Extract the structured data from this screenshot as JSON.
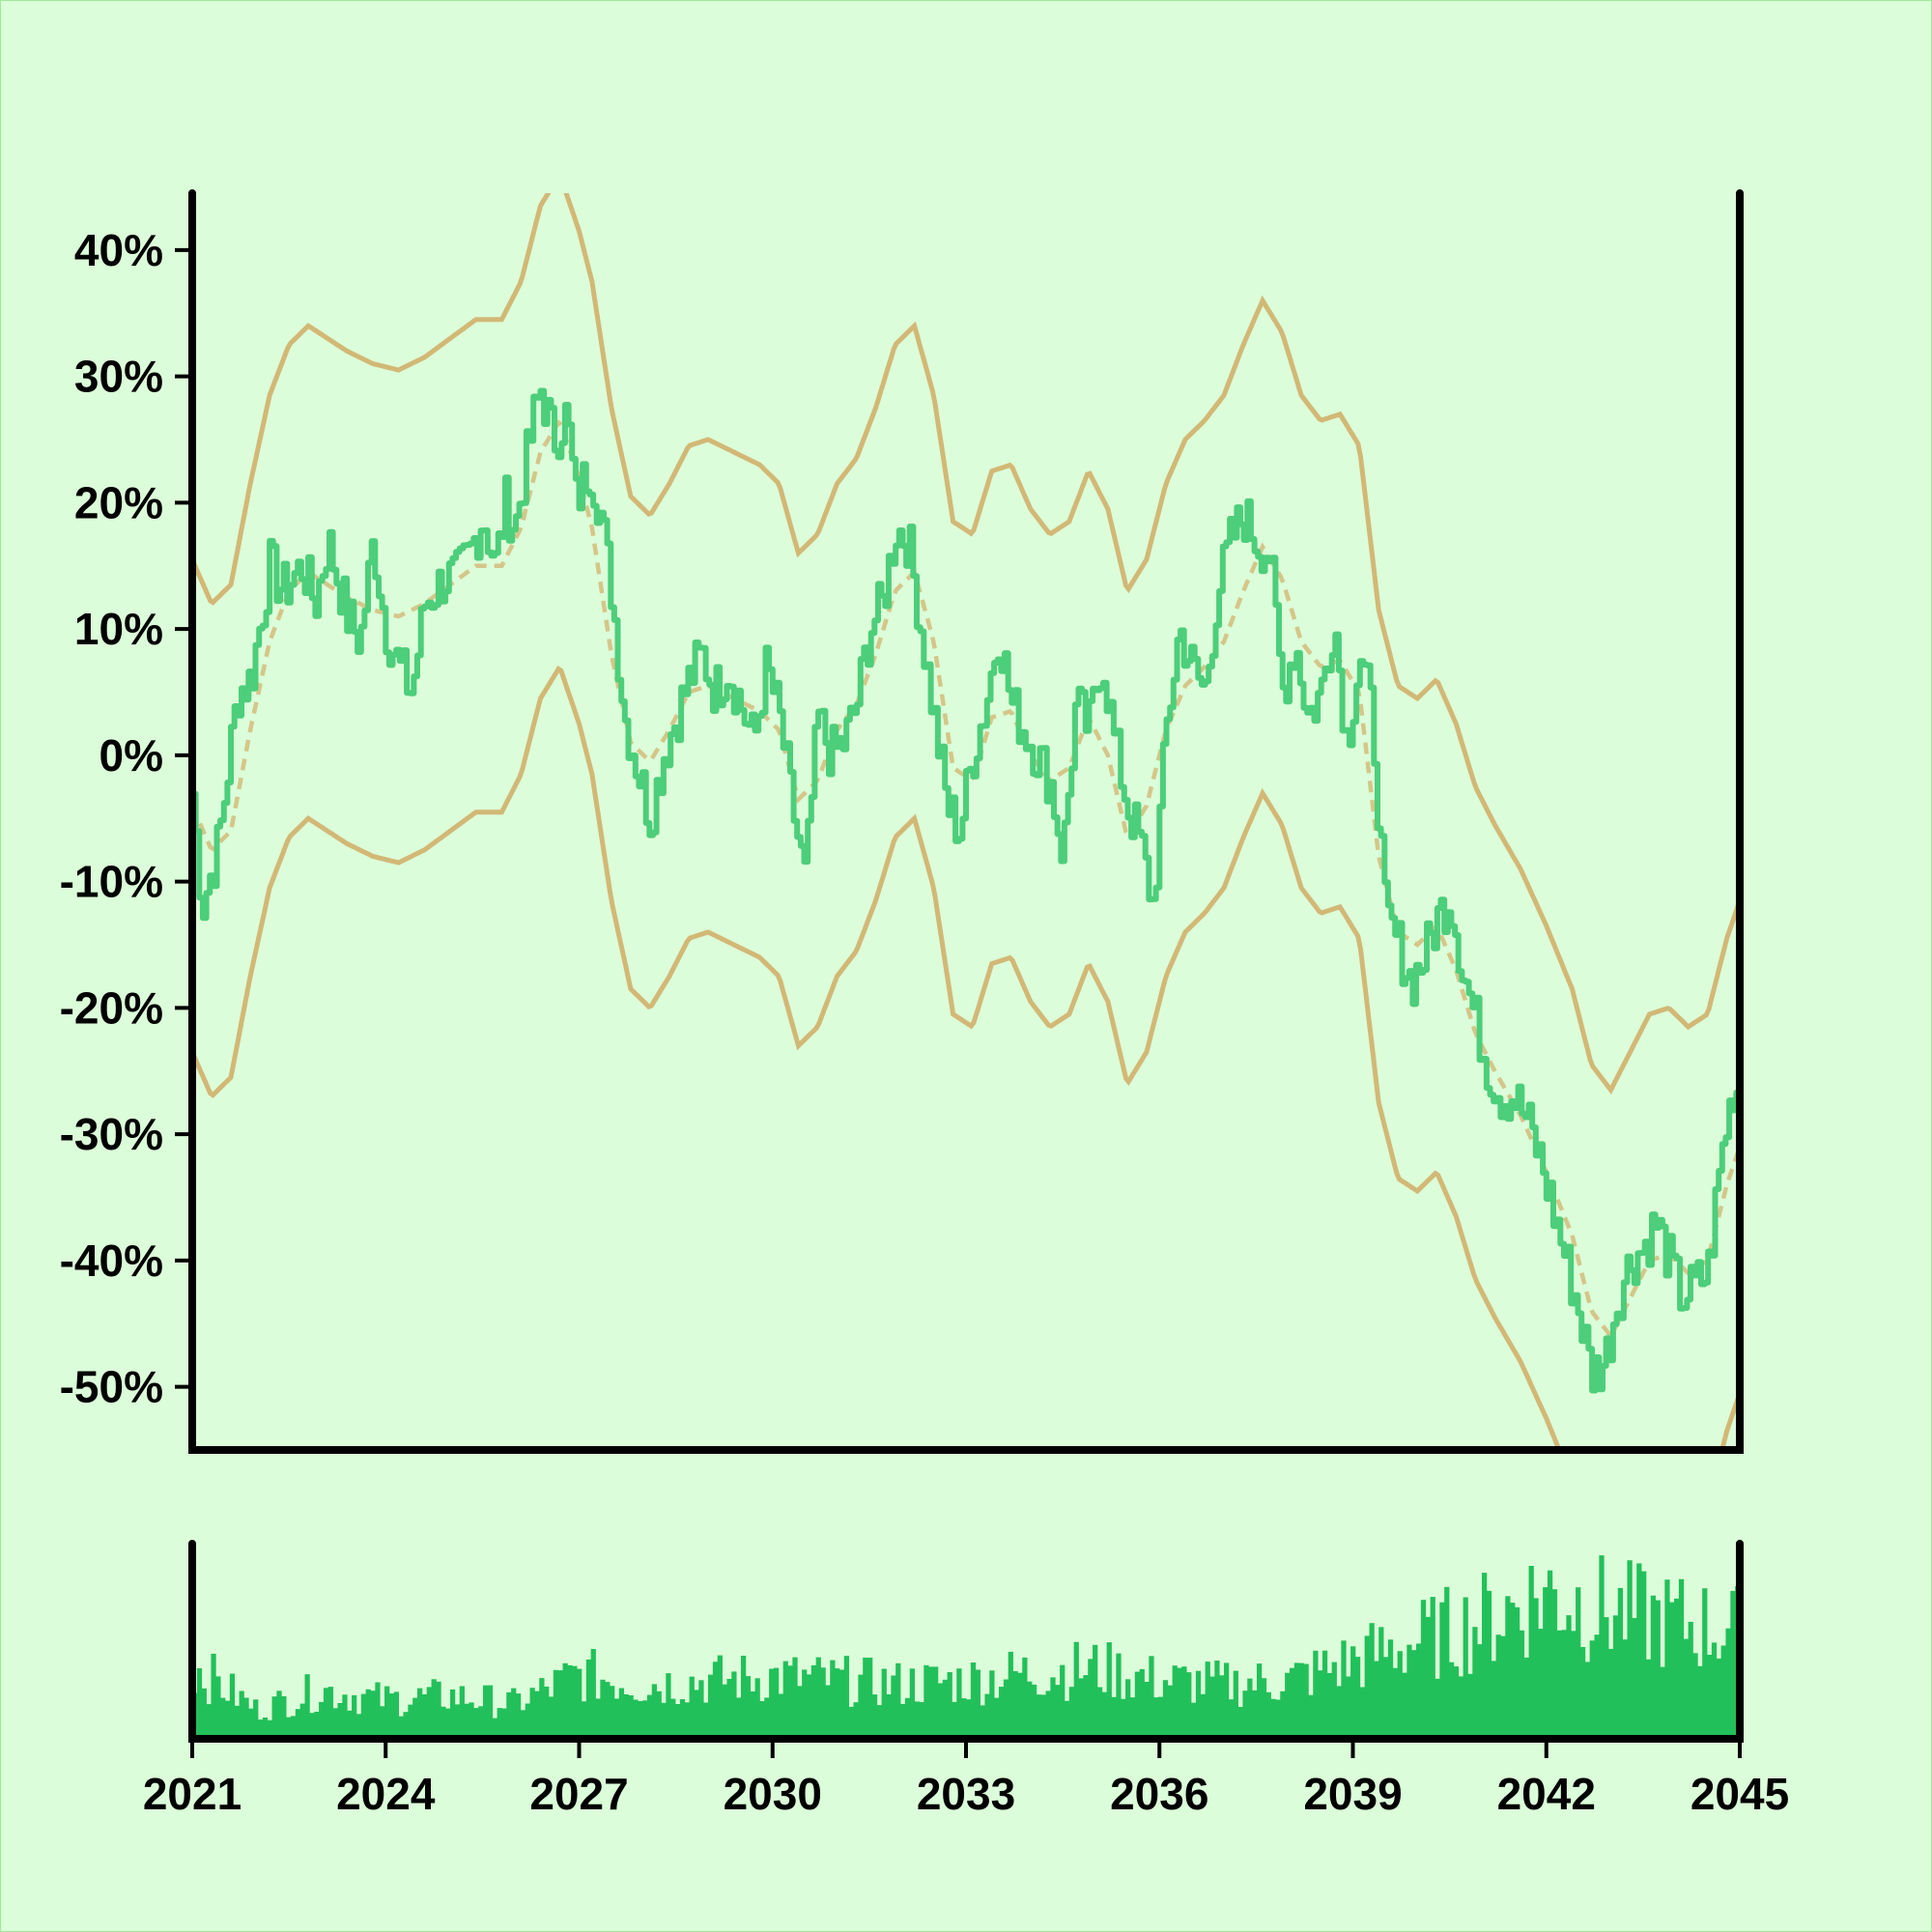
{
  "chart_data": [
    {
      "type": "line",
      "title": "",
      "xlabel": "",
      "ylabel": "",
      "xlim": [
        2021,
        2045
      ],
      "ylim": [
        -55,
        44.5
      ],
      "y_ticks": [
        40,
        30,
        20,
        10,
        0,
        -10,
        -20,
        -30,
        -40,
        -50
      ],
      "y_tick_labels": [
        "40%",
        "30%",
        "20%",
        "10%",
        "0%",
        "-10%",
        "-20%",
        "-30%",
        "-40%",
        "-50%"
      ],
      "grid": false,
      "legend": "none",
      "colors": {
        "price": "#4cce7a",
        "band": "#d2b876",
        "volume": "#22c05a"
      },
      "price_anchors": [
        [
          2021.0,
          -3
        ],
        [
          2021.15,
          -12
        ],
        [
          2021.4,
          -7
        ],
        [
          2021.7,
          5
        ],
        [
          2021.9,
          6
        ],
        [
          2022.2,
          15
        ],
        [
          2022.4,
          13
        ],
        [
          2022.7,
          15
        ],
        [
          2022.9,
          12
        ],
        [
          2023.1,
          17
        ],
        [
          2023.4,
          11
        ],
        [
          2023.6,
          9
        ],
        [
          2023.8,
          17
        ],
        [
          2024.0,
          10
        ],
        [
          2024.2,
          7
        ],
        [
          2024.4,
          5
        ],
        [
          2024.6,
          12
        ],
        [
          2024.9,
          14
        ],
        [
          2025.1,
          14
        ],
        [
          2025.3,
          16
        ],
        [
          2025.5,
          19
        ],
        [
          2025.7,
          15
        ],
        [
          2025.85,
          20
        ],
        [
          2026.0,
          18
        ],
        [
          2026.3,
          27
        ],
        [
          2026.4,
          29
        ],
        [
          2026.6,
          25
        ],
        [
          2026.8,
          27
        ],
        [
          2026.95,
          20
        ],
        [
          2027.15,
          23
        ],
        [
          2027.3,
          20
        ],
        [
          2027.5,
          13
        ],
        [
          2027.7,
          3
        ],
        [
          2027.9,
          -1
        ],
        [
          2028.1,
          -5
        ],
        [
          2028.3,
          0
        ],
        [
          2028.5,
          3
        ],
        [
          2028.7,
          6
        ],
        [
          2028.9,
          8
        ],
        [
          2029.1,
          5
        ],
        [
          2029.3,
          7
        ],
        [
          2029.5,
          4
        ],
        [
          2029.7,
          1
        ],
        [
          2029.9,
          7
        ],
        [
          2030.1,
          3
        ],
        [
          2030.3,
          -4
        ],
        [
          2030.5,
          -10
        ],
        [
          2030.7,
          3
        ],
        [
          2030.9,
          0
        ],
        [
          2031.1,
          1
        ],
        [
          2031.3,
          4
        ],
        [
          2031.5,
          10
        ],
        [
          2031.7,
          12
        ],
        [
          2031.9,
          18
        ],
        [
          2032.1,
          17
        ],
        [
          2032.3,
          10
        ],
        [
          2032.5,
          3
        ],
        [
          2032.7,
          -4
        ],
        [
          2032.9,
          -6
        ],
        [
          2033.1,
          0
        ],
        [
          2033.3,
          4
        ],
        [
          2033.5,
          10
        ],
        [
          2033.7,
          4
        ],
        [
          2033.9,
          2
        ],
        [
          2034.1,
          0
        ],
        [
          2034.3,
          -2
        ],
        [
          2034.5,
          -8
        ],
        [
          2034.7,
          4
        ],
        [
          2034.9,
          2
        ],
        [
          2035.1,
          8
        ],
        [
          2035.3,
          1
        ],
        [
          2035.5,
          -4
        ],
        [
          2035.7,
          -7
        ],
        [
          2035.9,
          -12
        ],
        [
          2036.1,
          2
        ],
        [
          2036.3,
          10
        ],
        [
          2036.5,
          7
        ],
        [
          2036.7,
          5
        ],
        [
          2036.9,
          13
        ],
        [
          2037.1,
          17
        ],
        [
          2037.3,
          19
        ],
        [
          2037.5,
          17
        ],
        [
          2037.7,
          16
        ],
        [
          2037.9,
          5
        ],
        [
          2038.1,
          9
        ],
        [
          2038.3,
          3
        ],
        [
          2038.5,
          5
        ],
        [
          2038.7,
          11
        ],
        [
          2038.9,
          1
        ],
        [
          2039.1,
          8
        ],
        [
          2039.3,
          3
        ],
        [
          2039.5,
          -13
        ],
        [
          2039.7,
          -15
        ],
        [
          2039.9,
          -18
        ],
        [
          2040.1,
          -16
        ],
        [
          2040.3,
          -13
        ],
        [
          2040.5,
          -11
        ],
        [
          2040.7,
          -17
        ],
        [
          2040.9,
          -21
        ],
        [
          2041.1,
          -25
        ],
        [
          2041.3,
          -27
        ],
        [
          2041.5,
          -27
        ],
        [
          2041.7,
          -29
        ],
        [
          2041.9,
          -32
        ],
        [
          2042.1,
          -36
        ],
        [
          2042.3,
          -40
        ],
        [
          2042.5,
          -44
        ],
        [
          2042.7,
          -49
        ],
        [
          2042.9,
          -48
        ],
        [
          2043.1,
          -43
        ],
        [
          2043.3,
          -40
        ],
        [
          2043.5,
          -39
        ],
        [
          2043.7,
          -37
        ],
        [
          2043.9,
          -40
        ],
        [
          2044.1,
          -43
        ],
        [
          2044.3,
          -42
        ],
        [
          2044.5,
          -41
        ],
        [
          2044.7,
          -32
        ],
        [
          2044.9,
          -26
        ],
        [
          2045.1,
          -28
        ],
        [
          2045.3,
          -23
        ],
        [
          2045.5,
          -27
        ],
        [
          2045.7,
          -34
        ],
        [
          2045.9,
          -34
        ]
      ],
      "moving_average": [
        [
          2021.0,
          -4
        ],
        [
          2021.3,
          -7.5
        ],
        [
          2021.6,
          -6
        ],
        [
          2021.9,
          2
        ],
        [
          2022.2,
          9
        ],
        [
          2022.5,
          13
        ],
        [
          2022.8,
          14.5
        ],
        [
          2023.1,
          13.5
        ],
        [
          2023.4,
          12.5
        ],
        [
          2023.8,
          11.5
        ],
        [
          2024.2,
          11
        ],
        [
          2024.6,
          12
        ],
        [
          2025.0,
          13.5
        ],
        [
          2025.4,
          15
        ],
        [
          2025.8,
          15
        ],
        [
          2026.1,
          18
        ],
        [
          2026.4,
          24
        ],
        [
          2026.7,
          26.5
        ],
        [
          2027.0,
          22
        ],
        [
          2027.2,
          18
        ],
        [
          2027.5,
          8
        ],
        [
          2027.8,
          1
        ],
        [
          2028.1,
          -0.5
        ],
        [
          2028.4,
          2
        ],
        [
          2028.7,
          5
        ],
        [
          2029.0,
          5.5
        ],
        [
          2029.4,
          4.5
        ],
        [
          2029.8,
          3.5
        ],
        [
          2030.1,
          2
        ],
        [
          2030.4,
          -3.5
        ],
        [
          2030.7,
          -2
        ],
        [
          2031.0,
          2
        ],
        [
          2031.3,
          4
        ],
        [
          2031.6,
          8
        ],
        [
          2031.9,
          13
        ],
        [
          2032.2,
          14.5
        ],
        [
          2032.5,
          9
        ],
        [
          2032.8,
          -1
        ],
        [
          2033.1,
          -2
        ],
        [
          2033.4,
          3
        ],
        [
          2033.7,
          3.5
        ],
        [
          2034.0,
          0
        ],
        [
          2034.3,
          -2
        ],
        [
          2034.6,
          -1
        ],
        [
          2034.9,
          3
        ],
        [
          2035.2,
          0
        ],
        [
          2035.5,
          -6.5
        ],
        [
          2035.8,
          -4
        ],
        [
          2036.1,
          2
        ],
        [
          2036.4,
          5.5
        ],
        [
          2036.7,
          7
        ],
        [
          2037.0,
          9
        ],
        [
          2037.3,
          13
        ],
        [
          2037.6,
          16.5
        ],
        [
          2037.9,
          14
        ],
        [
          2038.2,
          9
        ],
        [
          2038.5,
          7
        ],
        [
          2038.8,
          7.5
        ],
        [
          2039.1,
          5
        ],
        [
          2039.4,
          -8
        ],
        [
          2039.7,
          -14
        ],
        [
          2040.0,
          -15
        ],
        [
          2040.3,
          -13.5
        ],
        [
          2040.6,
          -17
        ],
        [
          2040.9,
          -22
        ],
        [
          2041.2,
          -25
        ],
        [
          2041.6,
          -28.5
        ],
        [
          2042.0,
          -33
        ],
        [
          2042.4,
          -38
        ],
        [
          2042.7,
          -44
        ],
        [
          2043.0,
          -46
        ],
        [
          2043.3,
          -43
        ],
        [
          2043.6,
          -40
        ],
        [
          2043.9,
          -39.5
        ],
        [
          2044.2,
          -41
        ],
        [
          2044.5,
          -40
        ],
        [
          2044.8,
          -34
        ],
        [
          2045.1,
          -29.5
        ],
        [
          2045.4,
          -25.5
        ],
        [
          2045.7,
          -27
        ],
        [
          2046.0,
          -30.5
        ]
      ],
      "band_offset": 19.5,
      "volume": {
        "relative_scale": [
          0,
          1
        ],
        "anchors": [
          [
            2021.0,
            0.38
          ],
          [
            2022.0,
            0.15
          ],
          [
            2023.0,
            0.25
          ],
          [
            2024.0,
            0.2
          ],
          [
            2025.0,
            0.22
          ],
          [
            2026.0,
            0.18
          ],
          [
            2027.0,
            0.33
          ],
          [
            2028.0,
            0.28
          ],
          [
            2029.0,
            0.3
          ],
          [
            2030.0,
            0.32
          ],
          [
            2031.0,
            0.3
          ],
          [
            2032.0,
            0.28
          ],
          [
            2033.0,
            0.3
          ],
          [
            2034.0,
            0.34
          ],
          [
            2035.0,
            0.36
          ],
          [
            2036.0,
            0.3
          ],
          [
            2037.0,
            0.28
          ],
          [
            2038.0,
            0.3
          ],
          [
            2039.0,
            0.4
          ],
          [
            2040.0,
            0.5
          ],
          [
            2041.0,
            0.6
          ],
          [
            2042.0,
            0.75
          ],
          [
            2043.0,
            0.65
          ],
          [
            2044.0,
            0.6
          ],
          [
            2045.0,
            0.55
          ],
          [
            2046.0,
            0.5
          ]
        ]
      },
      "x_tick_labels": [
        "2021",
        "2024",
        "2027",
        "2030",
        "2033",
        "2036",
        "2039",
        "2042",
        "2045"
      ]
    }
  ]
}
